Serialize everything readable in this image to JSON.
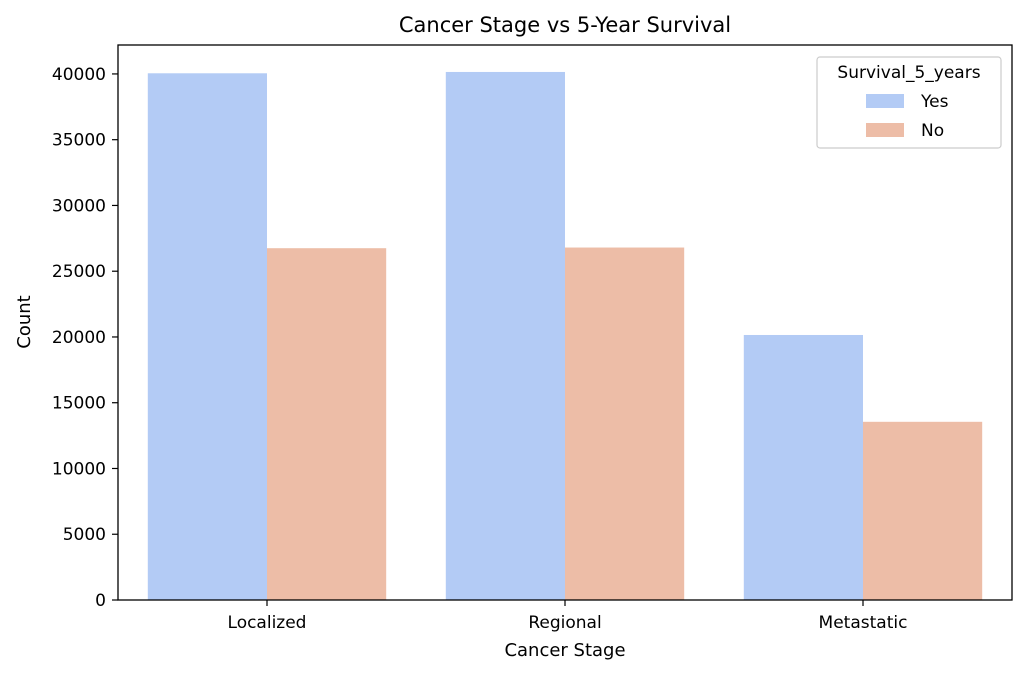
{
  "chart_data": {
    "type": "bar",
    "title": "Cancer Stage vs 5-Year Survival",
    "xlabel": "Cancer Stage",
    "ylabel": "Count",
    "categories": [
      "Localized",
      "Regional",
      "Metastatic"
    ],
    "series": [
      {
        "name": "Yes",
        "color": "#b3cbf5",
        "values": [
          40050,
          40150,
          20150
        ]
      },
      {
        "name": "No",
        "color": "#edbda7",
        "values": [
          26750,
          26800,
          13550
        ]
      }
    ],
    "ylim": [
      0,
      42200
    ],
    "yticks": [
      0,
      5000,
      10000,
      15000,
      20000,
      25000,
      30000,
      35000,
      40000
    ],
    "grid": false,
    "legend": {
      "title": "Survival_5_years",
      "placement": "top-right"
    }
  }
}
